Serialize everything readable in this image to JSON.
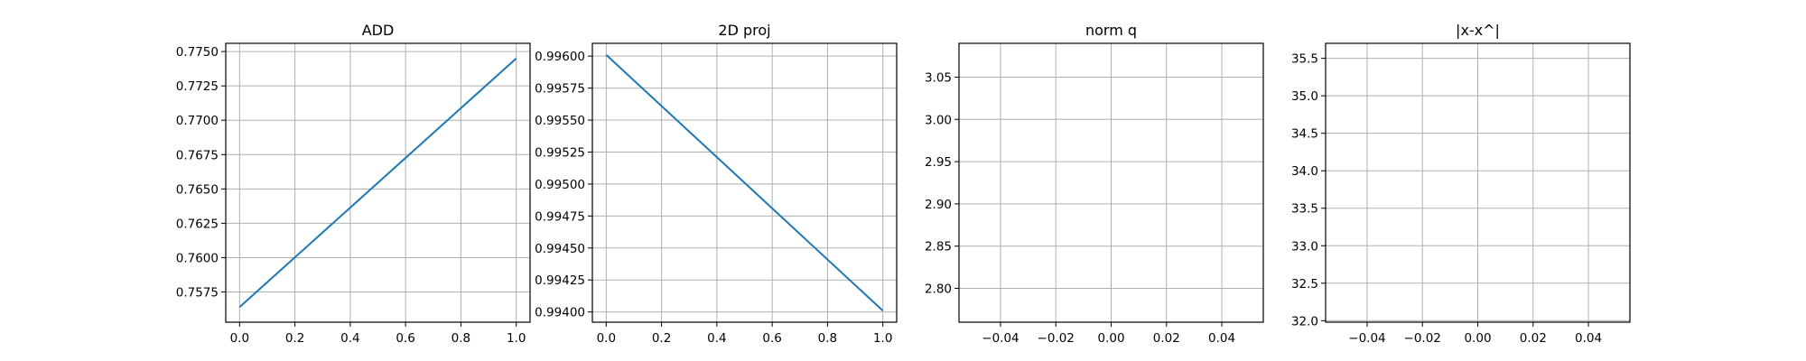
{
  "chart_data": [
    {
      "type": "line",
      "title": "ADD",
      "xlabel": "",
      "ylabel": "",
      "x": [
        0.0,
        1.0
      ],
      "series": [
        {
          "values": [
            0.7564,
            0.7745
          ],
          "color": "#1f77b4"
        }
      ],
      "xlim": [
        -0.05,
        1.05
      ],
      "ylim": [
        0.7553,
        0.7756
      ],
      "xticks": [
        0.0,
        0.2,
        0.4,
        0.6,
        0.8,
        1.0
      ],
      "xtick_labels": [
        "0.0",
        "0.2",
        "0.4",
        "0.6",
        "0.8",
        "1.0"
      ],
      "yticks": [
        0.7575,
        0.76,
        0.7625,
        0.765,
        0.7675,
        0.77,
        0.7725,
        0.775
      ],
      "ytick_labels": [
        "0.7575",
        "0.7600",
        "0.7625",
        "0.7650",
        "0.7675",
        "0.7700",
        "0.7725",
        "0.7750"
      ],
      "grid": true
    },
    {
      "type": "line",
      "title": "2D proj",
      "xlabel": "",
      "ylabel": "",
      "x": [
        0.0,
        1.0
      ],
      "series": [
        {
          "values": [
            0.99601,
            0.99401
          ],
          "color": "#1f77b4"
        }
      ],
      "xlim": [
        -0.05,
        1.05
      ],
      "ylim": [
        0.99392,
        0.9961
      ],
      "xticks": [
        0.0,
        0.2,
        0.4,
        0.6,
        0.8,
        1.0
      ],
      "xtick_labels": [
        "0.0",
        "0.2",
        "0.4",
        "0.6",
        "0.8",
        "1.0"
      ],
      "yticks": [
        0.994,
        0.99425,
        0.9945,
        0.99475,
        0.995,
        0.99525,
        0.9955,
        0.99575,
        0.996
      ],
      "ytick_labels": [
        "0.99400",
        "0.99425",
        "0.99450",
        "0.99475",
        "0.99500",
        "0.99525",
        "0.99550",
        "0.99575",
        "0.99600"
      ],
      "grid": true
    },
    {
      "type": "line",
      "title": "norm q",
      "xlabel": "",
      "ylabel": "",
      "x": [],
      "series": [],
      "xlim": [
        -0.055,
        0.055
      ],
      "ylim": [
        2.76,
        3.09
      ],
      "xticks": [
        -0.04,
        -0.02,
        0.0,
        0.02,
        0.04
      ],
      "xtick_labels": [
        "−0.04",
        "−0.02",
        "0.00",
        "0.02",
        "0.04"
      ],
      "yticks": [
        2.8,
        2.85,
        2.9,
        2.95,
        3.0,
        3.05
      ],
      "ytick_labels": [
        "2.80",
        "2.85",
        "2.90",
        "2.95",
        "3.00",
        "3.05"
      ],
      "grid": true
    },
    {
      "type": "line",
      "title": "|x-x^|",
      "xlabel": "",
      "ylabel": "",
      "x": [],
      "series": [],
      "xlim": [
        -0.055,
        0.055
      ],
      "ylim": [
        31.98,
        35.7
      ],
      "xticks": [
        -0.04,
        -0.02,
        0.0,
        0.02,
        0.04
      ],
      "xtick_labels": [
        "−0.04",
        "−0.02",
        "0.00",
        "0.02",
        "0.04"
      ],
      "yticks": [
        32.0,
        32.5,
        33.0,
        33.5,
        34.0,
        34.5,
        35.0,
        35.5
      ],
      "ytick_labels": [
        "32.0",
        "32.5",
        "33.0",
        "33.5",
        "34.0",
        "34.5",
        "35.0",
        "35.5"
      ],
      "grid": true
    }
  ]
}
